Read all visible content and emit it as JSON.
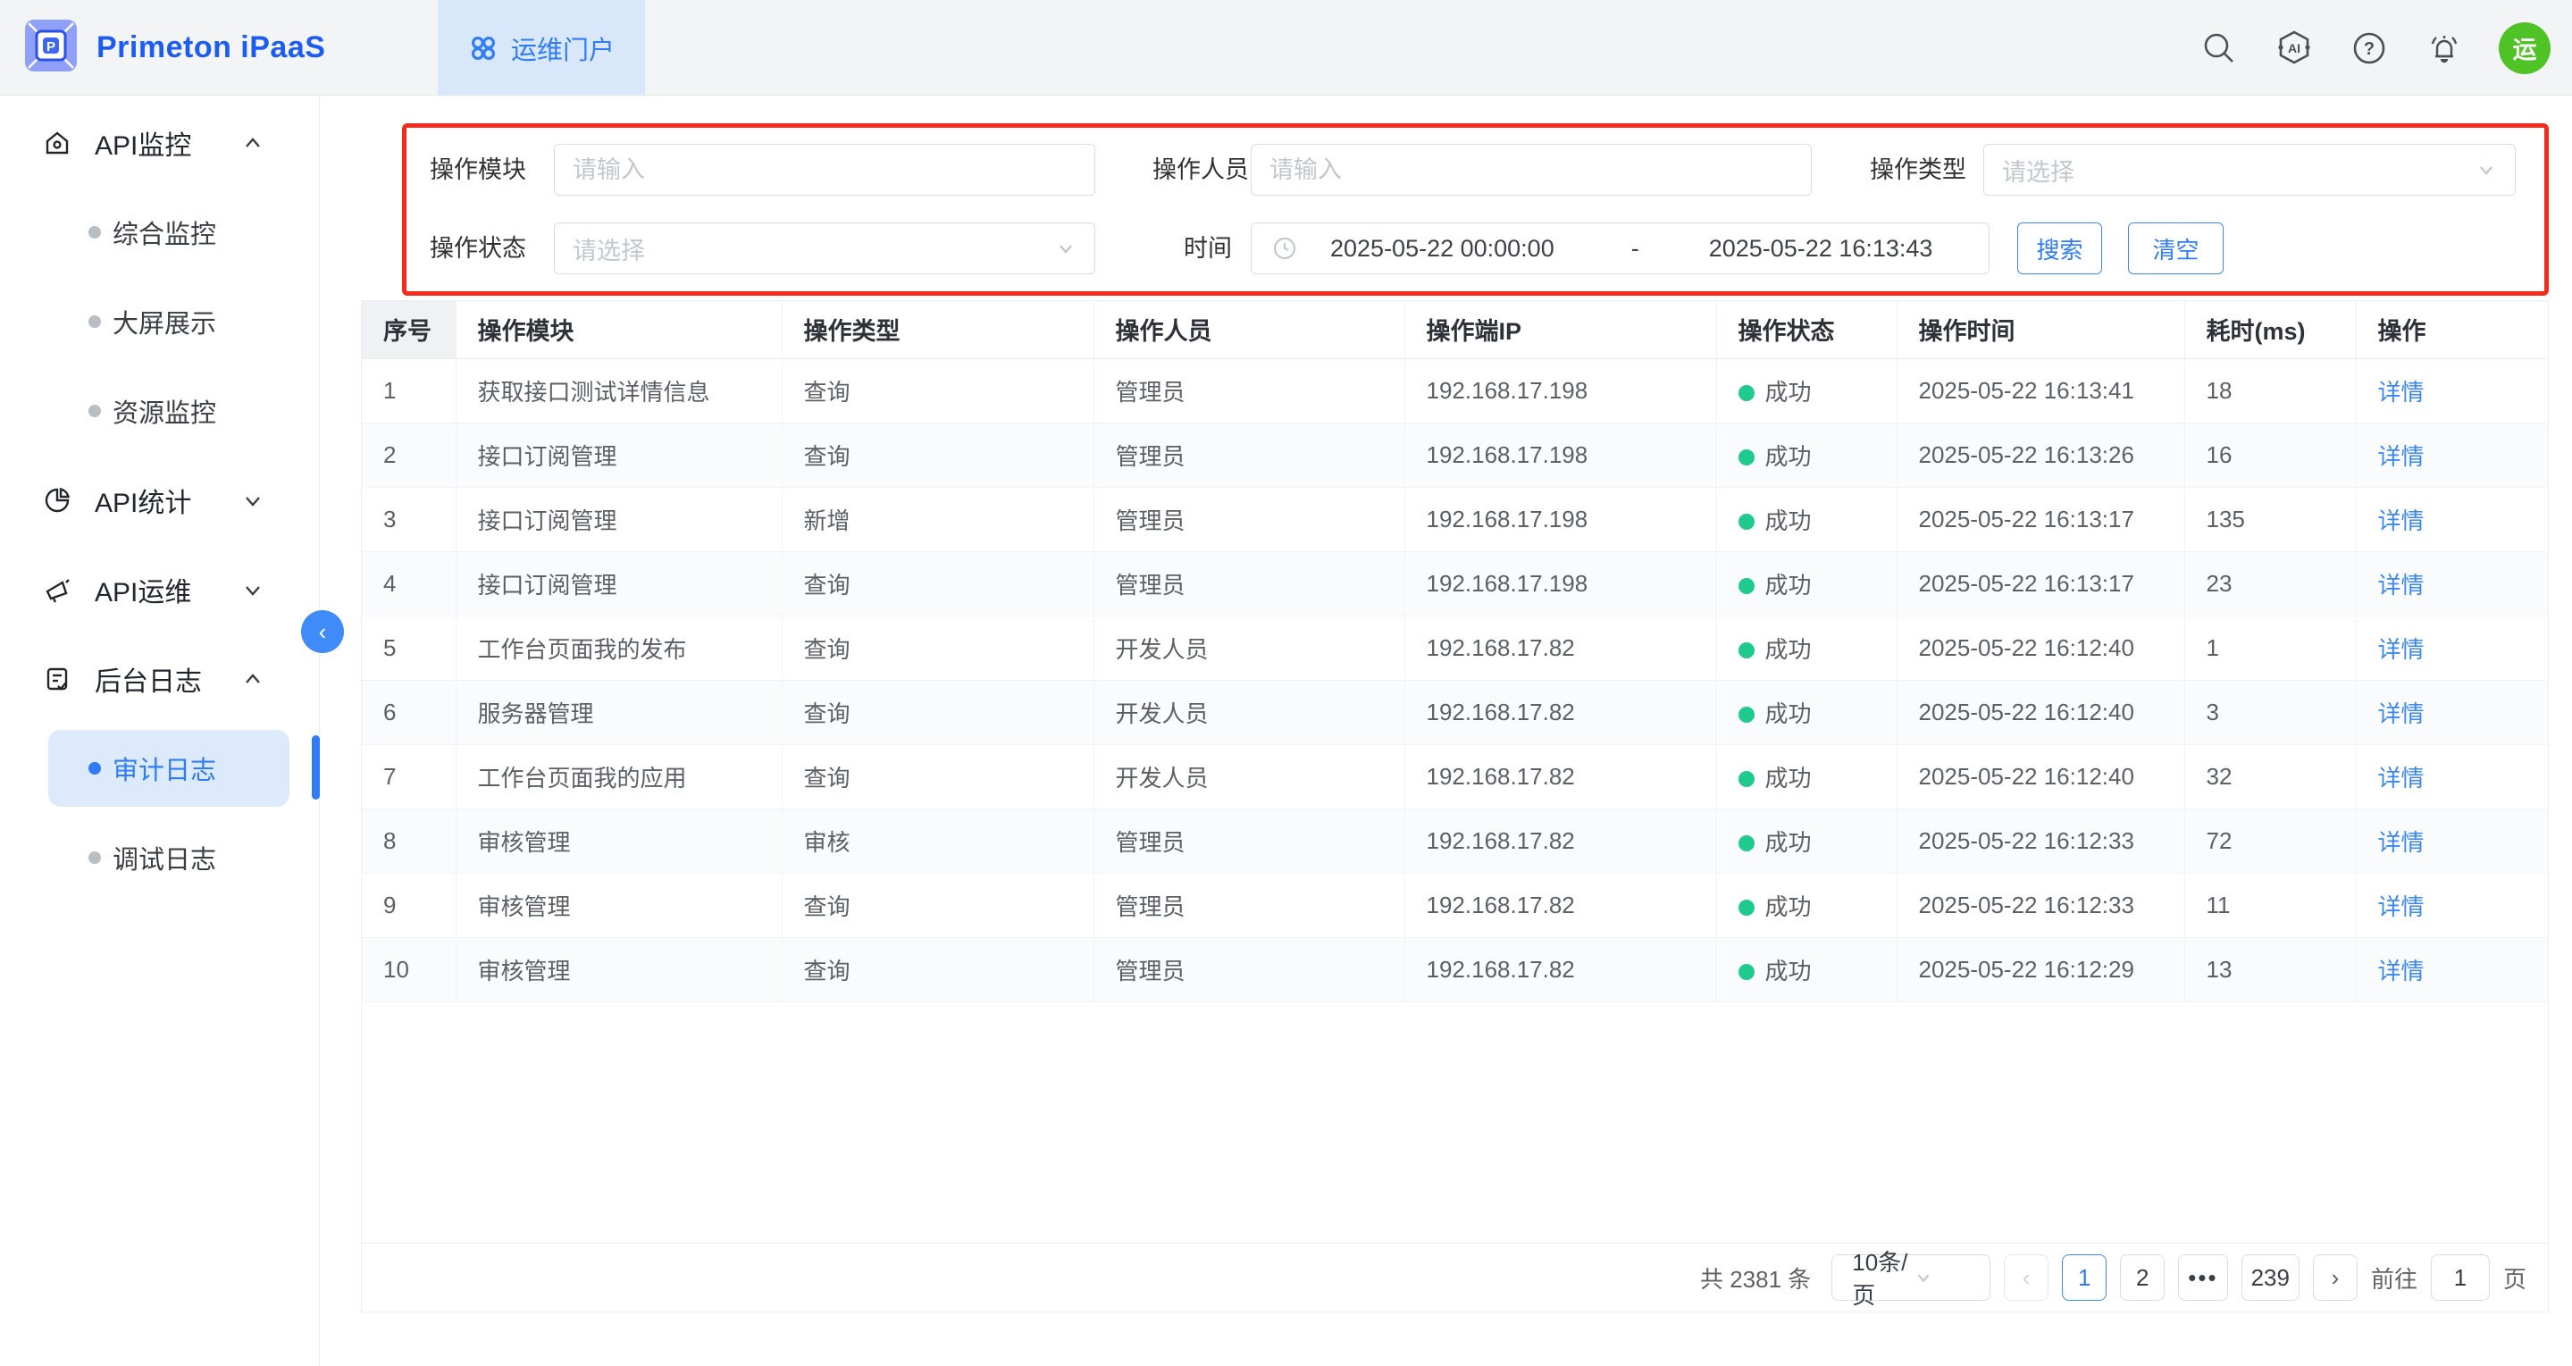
{
  "header": {
    "brand": "Primeton iPaaS",
    "portal_tab": "运维门户",
    "avatar_text": "运"
  },
  "sidebar": {
    "menus": [
      {
        "label": "API监控",
        "expanded": true,
        "children": [
          {
            "label": "综合监控"
          },
          {
            "label": "大屏展示"
          },
          {
            "label": "资源监控"
          }
        ]
      },
      {
        "label": "API统计",
        "expanded": false,
        "children": []
      },
      {
        "label": "API运维",
        "expanded": false,
        "children": []
      },
      {
        "label": "后台日志",
        "expanded": true,
        "children": [
          {
            "label": "审计日志",
            "active": true
          },
          {
            "label": "调试日志"
          }
        ]
      }
    ]
  },
  "filters": {
    "module_label": "操作模块",
    "module_placeholder": "请输入",
    "operator_label": "操作人员",
    "operator_placeholder": "请输入",
    "type_label": "操作类型",
    "type_placeholder": "请选择",
    "status_label": "操作状态",
    "status_placeholder": "请选择",
    "time_label": "时间",
    "time_start": "2025-05-22 00:00:00",
    "time_separator": "-",
    "time_end": "2025-05-22 16:13:43",
    "search_button": "搜索",
    "clear_button": "清空"
  },
  "table": {
    "columns": [
      "序号",
      "操作模块",
      "操作类型",
      "操作人员",
      "操作端IP",
      "操作状态",
      "操作时间",
      "耗时(ms)",
      "操作"
    ],
    "rows": [
      {
        "index": "1",
        "module": "获取接口测试详情信息",
        "type": "查询",
        "operator": "管理员",
        "ip": "192.168.17.198",
        "status": "成功",
        "time": "2025-05-22 16:13:41",
        "duration": "18",
        "action": "详情"
      },
      {
        "index": "2",
        "module": "接口订阅管理",
        "type": "查询",
        "operator": "管理员",
        "ip": "192.168.17.198",
        "status": "成功",
        "time": "2025-05-22 16:13:26",
        "duration": "16",
        "action": "详情"
      },
      {
        "index": "3",
        "module": "接口订阅管理",
        "type": "新增",
        "operator": "管理员",
        "ip": "192.168.17.198",
        "status": "成功",
        "time": "2025-05-22 16:13:17",
        "duration": "135",
        "action": "详情"
      },
      {
        "index": "4",
        "module": "接口订阅管理",
        "type": "查询",
        "operator": "管理员",
        "ip": "192.168.17.198",
        "status": "成功",
        "time": "2025-05-22 16:13:17",
        "duration": "23",
        "action": "详情"
      },
      {
        "index": "5",
        "module": "工作台页面我的发布",
        "type": "查询",
        "operator": "开发人员",
        "ip": "192.168.17.82",
        "status": "成功",
        "time": "2025-05-22 16:12:40",
        "duration": "1",
        "action": "详情"
      },
      {
        "index": "6",
        "module": "服务器管理",
        "type": "查询",
        "operator": "开发人员",
        "ip": "192.168.17.82",
        "status": "成功",
        "time": "2025-05-22 16:12:40",
        "duration": "3",
        "action": "详情"
      },
      {
        "index": "7",
        "module": "工作台页面我的应用",
        "type": "查询",
        "operator": "开发人员",
        "ip": "192.168.17.82",
        "status": "成功",
        "time": "2025-05-22 16:12:40",
        "duration": "32",
        "action": "详情"
      },
      {
        "index": "8",
        "module": "审核管理",
        "type": "审核",
        "operator": "管理员",
        "ip": "192.168.17.82",
        "status": "成功",
        "time": "2025-05-22 16:12:33",
        "duration": "72",
        "action": "详情"
      },
      {
        "index": "9",
        "module": "审核管理",
        "type": "查询",
        "operator": "管理员",
        "ip": "192.168.17.82",
        "status": "成功",
        "time": "2025-05-22 16:12:33",
        "duration": "11",
        "action": "详情"
      },
      {
        "index": "10",
        "module": "审核管理",
        "type": "查询",
        "operator": "管理员",
        "ip": "192.168.17.82",
        "status": "成功",
        "time": "2025-05-22 16:12:29",
        "duration": "13",
        "action": "详情"
      }
    ]
  },
  "pagination": {
    "total_text": "共 2381 条",
    "page_size": "10条/页",
    "prev_arrow": "‹",
    "next_arrow": "›",
    "pages": [
      "1",
      "2",
      "•••",
      "239"
    ],
    "active_page": "1",
    "goto_label": "前往",
    "goto_value": "1",
    "goto_suffix": "页"
  },
  "colors": {
    "accent": "#2f7cf6",
    "success_dot": "#1fca8d",
    "highlight_border": "#f32b1c",
    "avatar_green": "#4fc326"
  }
}
